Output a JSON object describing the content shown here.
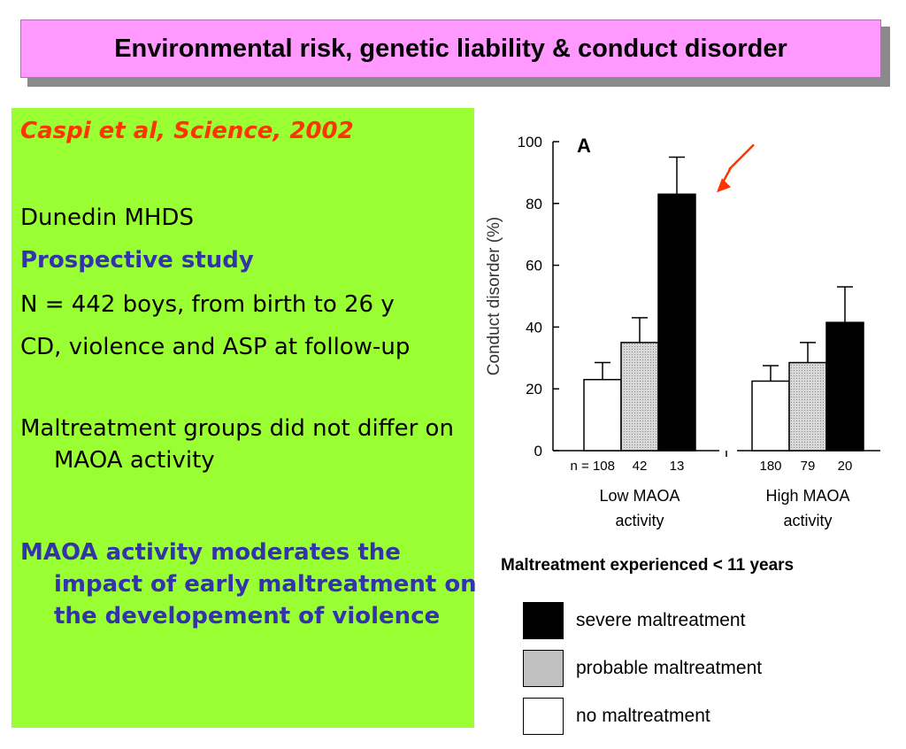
{
  "title": "Environmental risk, genetic liability & conduct disorder",
  "left_panel": {
    "citation": "Caspi et al, Science, 2002",
    "lines": [
      "Dunedin MHDS",
      "Prospective study",
      "N = 442 boys, from birth to 26 y",
      "CD, violence and ASP at follow-up",
      "Maltreatment groups did not differ on MAOA activity",
      "MAOA activity moderates the impact of early maltreatment on the developement of violence"
    ]
  },
  "chart_data": {
    "type": "bar",
    "panel_label": "A",
    "ylabel": "Conduct disorder (%)",
    "ylim": [
      0,
      100
    ],
    "yticks": [
      0,
      20,
      40,
      60,
      80,
      100
    ],
    "groups": [
      {
        "label_line1": "Low MAOA",
        "label_line2": "activity",
        "n_labels": [
          "n = 108",
          "42",
          "13"
        ]
      },
      {
        "label_line1": "High MAOA",
        "label_line2": "activity",
        "n_labels": [
          "180",
          "79",
          "20"
        ]
      }
    ],
    "series": [
      {
        "name": "no maltreatment",
        "values": [
          23,
          22.5
        ],
        "errors": [
          5.5,
          5
        ]
      },
      {
        "name": "probable maltreatment",
        "values": [
          35,
          28.5
        ],
        "errors": [
          8,
          6.5
        ]
      },
      {
        "name": "severe maltreatment",
        "values": [
          83,
          41.5
        ],
        "errors": [
          12,
          11.5
        ]
      }
    ],
    "colors": [
      "#ffffff",
      "#cccccc",
      "#000000"
    ],
    "highlight_color": "#ff3300"
  },
  "caption": "Maltreatment experienced < 11 years",
  "legend": [
    {
      "label": "severe maltreatment",
      "color": "#000000"
    },
    {
      "label": "probable maltreatment",
      "color": "#c0c0c0"
    },
    {
      "label": "no maltreatment",
      "color": "#ffffff"
    }
  ]
}
